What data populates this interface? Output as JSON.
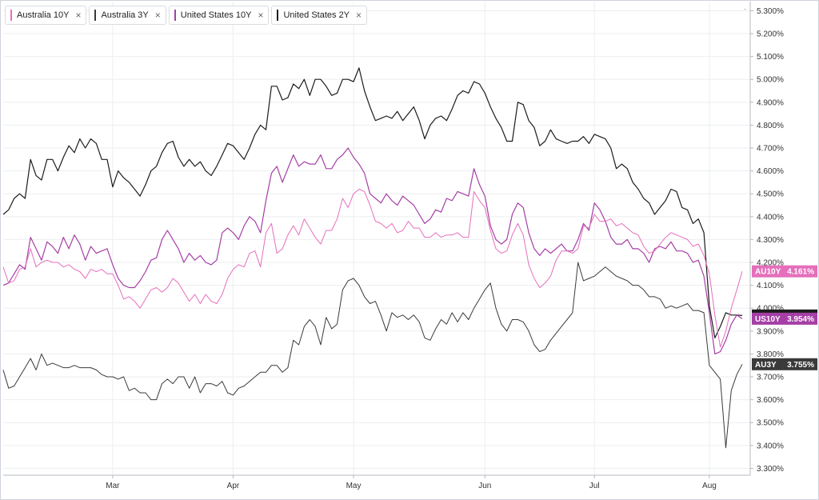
{
  "legend": [
    {
      "label": "Australia 10Y",
      "color": "#e56fbb",
      "close": "×"
    },
    {
      "label": "Australia 3Y",
      "color": "#3a3a3a",
      "close": "×"
    },
    {
      "label": "United States 10Y",
      "color": "#a53fa5",
      "close": "×"
    },
    {
      "label": "United States 2Y",
      "color": "#1c1c1c",
      "close": "×"
    }
  ],
  "top_marker": "·",
  "chart_data": {
    "type": "line",
    "title": "",
    "y_ticks": [
      "5.300%",
      "5.200%",
      "5.100%",
      "5.000%",
      "4.900%",
      "4.800%",
      "4.700%",
      "4.600%",
      "4.500%",
      "4.400%",
      "4.300%",
      "4.200%",
      "4.100%",
      "4.000%",
      "3.900%",
      "3.800%",
      "3.700%",
      "3.600%",
      "3.500%",
      "3.400%",
      "3.300%"
    ],
    "y_tick_values": [
      5.3,
      5.2,
      5.1,
      5.0,
      4.9,
      4.8,
      4.7,
      4.6,
      4.5,
      4.4,
      4.3,
      4.2,
      4.1,
      4.0,
      3.9,
      3.8,
      3.7,
      3.6,
      3.5,
      3.4,
      3.3
    ],
    "ylim": [
      3.27,
      5.34
    ],
    "x_ticks": [
      "Mar",
      "Apr",
      "May",
      "Jun",
      "Jul",
      "Aug"
    ],
    "x_tick_index": [
      20,
      42,
      64,
      88,
      108,
      129
    ],
    "x_count": 136,
    "grid": true,
    "series": [
      {
        "name": "United States 2Y",
        "color": "#1c1c1c",
        "width": 1.2,
        "values": [
          4.41,
          4.43,
          4.48,
          4.5,
          4.48,
          4.65,
          4.58,
          4.56,
          4.65,
          4.65,
          4.6,
          4.66,
          4.71,
          4.68,
          4.74,
          4.7,
          4.74,
          4.72,
          4.65,
          4.65,
          4.53,
          4.6,
          4.57,
          4.55,
          4.52,
          4.49,
          4.54,
          4.6,
          4.62,
          4.68,
          4.72,
          4.73,
          4.66,
          4.62,
          4.65,
          4.62,
          4.64,
          4.6,
          4.58,
          4.62,
          4.67,
          4.72,
          4.71,
          4.68,
          4.65,
          4.7,
          4.76,
          4.8,
          4.78,
          4.97,
          4.97,
          4.91,
          4.92,
          4.98,
          4.96,
          5.0,
          4.93,
          5.0,
          5.0,
          4.97,
          4.93,
          4.94,
          5.0,
          5.0,
          4.99,
          5.05,
          4.95,
          4.88,
          4.82,
          4.83,
          4.84,
          4.83,
          4.86,
          4.82,
          4.85,
          4.88,
          4.82,
          4.74,
          4.8,
          4.83,
          4.84,
          4.82,
          4.87,
          4.93,
          4.95,
          4.94,
          4.99,
          4.98,
          4.94,
          4.88,
          4.83,
          4.79,
          4.73,
          4.73,
          4.9,
          4.89,
          4.82,
          4.79,
          4.71,
          4.73,
          4.78,
          4.74,
          4.73,
          4.72,
          4.73,
          4.73,
          4.75,
          4.72,
          4.76,
          4.75,
          4.74,
          4.7,
          4.61,
          4.63,
          4.61,
          4.55,
          4.52,
          4.48,
          4.46,
          4.41,
          4.44,
          4.47,
          4.52,
          4.51,
          4.44,
          4.43,
          4.37,
          4.39,
          4.33,
          4.01,
          3.87,
          3.92,
          3.98,
          3.97,
          3.97,
          3.968
        ]
      },
      {
        "name": "United States 10Y",
        "color": "#a53fa5",
        "width": 1.2,
        "values": [
          4.1,
          4.11,
          4.15,
          4.19,
          4.17,
          4.31,
          4.26,
          4.21,
          4.29,
          4.27,
          4.24,
          4.31,
          4.26,
          4.32,
          4.28,
          4.21,
          4.27,
          4.24,
          4.25,
          4.26,
          4.19,
          4.13,
          4.1,
          4.09,
          4.09,
          4.12,
          4.16,
          4.21,
          4.22,
          4.3,
          4.34,
          4.3,
          4.26,
          4.2,
          4.24,
          4.21,
          4.23,
          4.2,
          4.19,
          4.21,
          4.33,
          4.35,
          4.33,
          4.3,
          4.36,
          4.4,
          4.38,
          4.33,
          4.47,
          4.59,
          4.62,
          4.55,
          4.61,
          4.67,
          4.62,
          4.64,
          4.63,
          4.63,
          4.67,
          4.61,
          4.61,
          4.65,
          4.67,
          4.7,
          4.66,
          4.63,
          4.59,
          4.5,
          4.48,
          4.46,
          4.5,
          4.47,
          4.45,
          4.49,
          4.47,
          4.45,
          4.41,
          4.37,
          4.39,
          4.43,
          4.42,
          4.48,
          4.47,
          4.51,
          4.5,
          4.49,
          4.61,
          4.54,
          4.49,
          4.36,
          4.3,
          4.28,
          4.3,
          4.41,
          4.46,
          4.44,
          4.33,
          4.26,
          4.23,
          4.26,
          4.24,
          4.26,
          4.28,
          4.25,
          4.25,
          4.3,
          4.37,
          4.34,
          4.46,
          4.43,
          4.38,
          4.31,
          4.28,
          4.28,
          4.3,
          4.26,
          4.26,
          4.24,
          4.2,
          4.26,
          4.27,
          4.26,
          4.29,
          4.25,
          4.25,
          4.24,
          4.2,
          4.21,
          4.14,
          3.98,
          3.8,
          3.81,
          3.86,
          3.93,
          3.97,
          3.954
        ]
      },
      {
        "name": "Australia 10Y",
        "color": "#e56fbb",
        "width": 1.0,
        "values": [
          4.18,
          4.11,
          4.12,
          4.17,
          4.18,
          4.26,
          4.18,
          4.2,
          4.21,
          4.2,
          4.2,
          4.18,
          4.19,
          4.17,
          4.16,
          4.13,
          4.17,
          4.16,
          4.17,
          4.15,
          4.15,
          4.1,
          4.04,
          4.05,
          4.03,
          4.0,
          4.04,
          4.08,
          4.09,
          4.07,
          4.09,
          4.13,
          4.11,
          4.07,
          4.03,
          4.06,
          4.02,
          4.06,
          4.03,
          4.02,
          4.06,
          4.13,
          4.17,
          4.19,
          4.18,
          4.24,
          4.25,
          4.18,
          4.33,
          4.37,
          4.24,
          4.26,
          4.32,
          4.36,
          4.32,
          4.39,
          4.35,
          4.31,
          4.28,
          4.34,
          4.34,
          4.39,
          4.48,
          4.44,
          4.5,
          4.52,
          4.51,
          4.45,
          4.38,
          4.37,
          4.35,
          4.37,
          4.33,
          4.34,
          4.38,
          4.35,
          4.35,
          4.31,
          4.31,
          4.33,
          4.31,
          4.32,
          4.32,
          4.33,
          4.31,
          4.31,
          4.51,
          4.47,
          4.44,
          4.34,
          4.26,
          4.24,
          4.25,
          4.32,
          4.37,
          4.32,
          4.19,
          4.13,
          4.09,
          4.11,
          4.14,
          4.21,
          4.25,
          4.25,
          4.24,
          4.26,
          4.36,
          4.35,
          4.41,
          4.38,
          4.38,
          4.39,
          4.36,
          4.37,
          4.35,
          4.33,
          4.32,
          4.27,
          4.24,
          4.25,
          4.28,
          4.31,
          4.33,
          4.32,
          4.31,
          4.3,
          4.27,
          4.28,
          4.23,
          4.15,
          3.97,
          3.83,
          3.9,
          4.0,
          4.08,
          4.161
        ]
      },
      {
        "name": "Australia 3Y",
        "color": "#3a3a3a",
        "width": 1.0,
        "values": [
          3.73,
          3.65,
          3.66,
          3.7,
          3.74,
          3.78,
          3.73,
          3.8,
          3.75,
          3.76,
          3.75,
          3.74,
          3.74,
          3.75,
          3.74,
          3.74,
          3.74,
          3.73,
          3.71,
          3.7,
          3.7,
          3.69,
          3.7,
          3.64,
          3.65,
          3.63,
          3.63,
          3.6,
          3.6,
          3.67,
          3.69,
          3.67,
          3.7,
          3.7,
          3.65,
          3.7,
          3.63,
          3.67,
          3.67,
          3.66,
          3.68,
          3.63,
          3.62,
          3.65,
          3.66,
          3.68,
          3.7,
          3.72,
          3.72,
          3.75,
          3.75,
          3.72,
          3.74,
          3.86,
          3.84,
          3.92,
          3.95,
          3.92,
          3.84,
          3.96,
          3.91,
          3.93,
          4.08,
          4.12,
          4.13,
          4.1,
          4.05,
          4.02,
          4.03,
          3.97,
          3.9,
          3.98,
          3.96,
          3.97,
          3.95,
          3.97,
          3.94,
          3.87,
          3.86,
          3.91,
          3.95,
          3.93,
          3.98,
          3.94,
          3.98,
          3.95,
          4.0,
          4.04,
          4.08,
          4.11,
          4.0,
          3.93,
          3.9,
          3.95,
          3.95,
          3.94,
          3.9,
          3.84,
          3.81,
          3.82,
          3.86,
          3.89,
          3.92,
          3.95,
          3.98,
          4.2,
          4.12,
          4.13,
          4.14,
          4.16,
          4.18,
          4.16,
          4.14,
          4.13,
          4.12,
          4.1,
          4.1,
          4.08,
          4.05,
          4.05,
          4.04,
          4.0,
          4.01,
          4.0,
          4.01,
          4.02,
          3.99,
          3.99,
          3.98,
          3.75,
          3.72,
          3.69,
          3.39,
          3.64,
          3.71,
          3.755
        ]
      }
    ],
    "last_value_labels": [
      {
        "code": "AU10Y",
        "value": "4.161%",
        "y": 4.161,
        "color": "#e56fbb"
      },
      {
        "code": "US2Y",
        "value": "3.968%",
        "y": 3.968,
        "color": "#1c1c1c"
      },
      {
        "code": "US10Y",
        "value": "3.954%",
        "y": 3.954,
        "color": "#a53fa5"
      },
      {
        "code": "AU3Y",
        "value": "3.755%",
        "y": 3.755,
        "color": "#3a3a3a"
      }
    ]
  }
}
